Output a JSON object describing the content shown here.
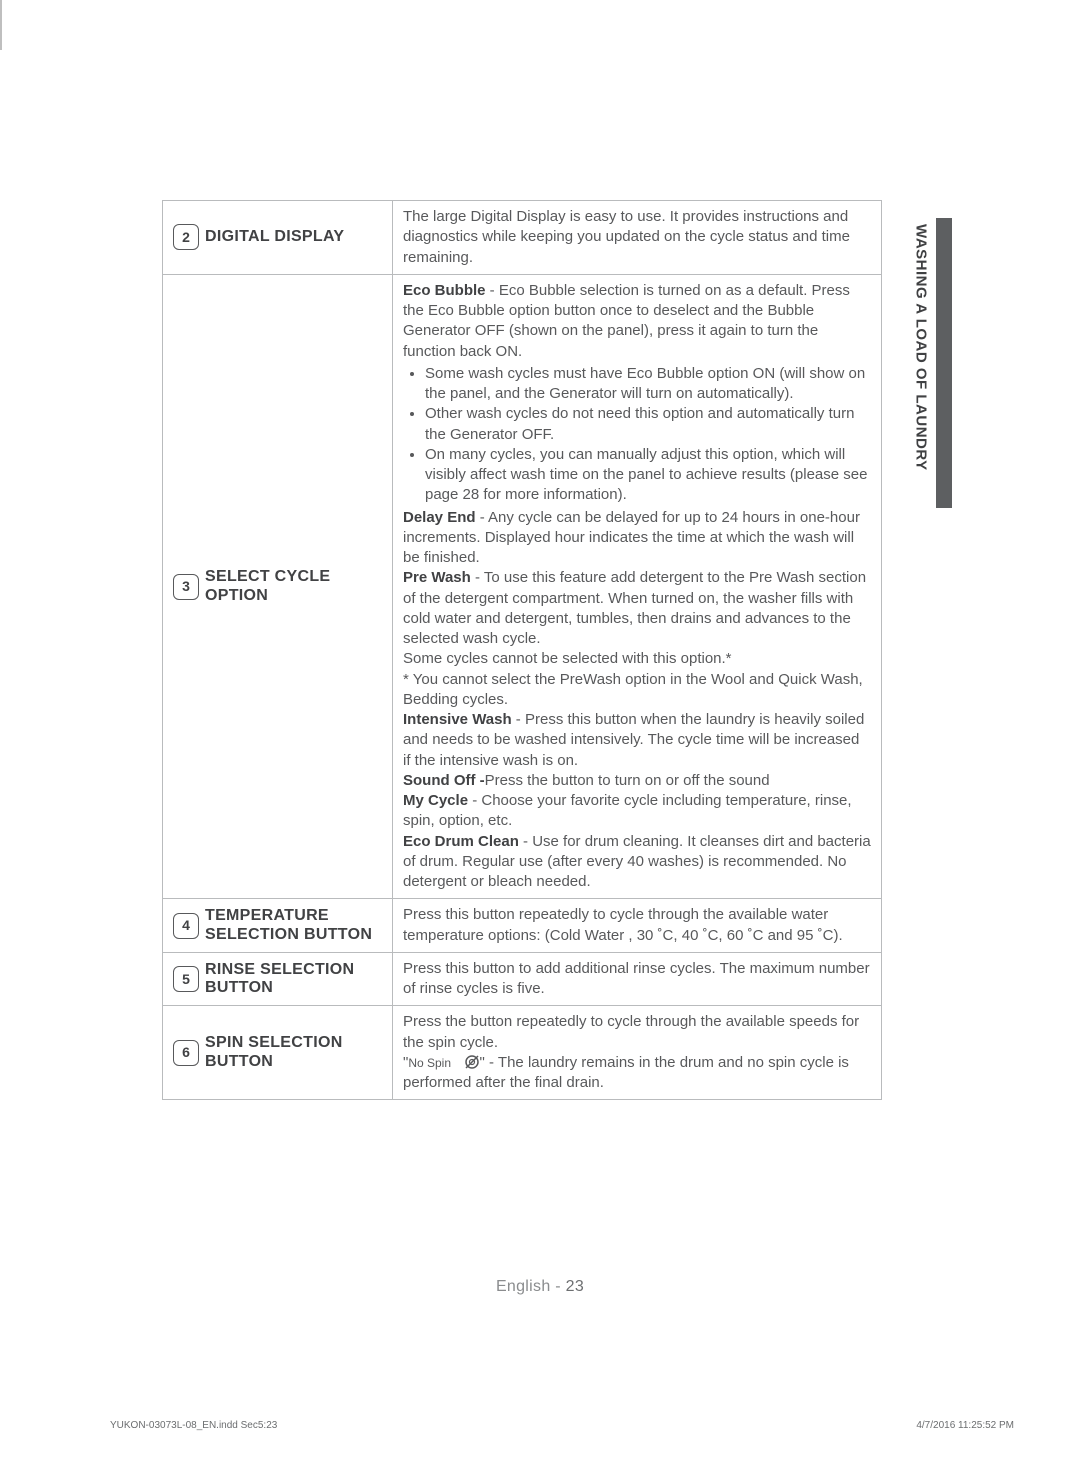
{
  "side_tab": "WASHING A LOAD OF LAUNDRY",
  "footer": {
    "lang": "English - ",
    "page": "23",
    "doc_id": "YUKON-03073L-08_EN.indd   Sec5:23",
    "timestamp": "4/7/2016   11:25:52 PM"
  },
  "rows": [
    {
      "num": "2",
      "label": "DIGITAL DISPLAY",
      "desc_html": "The large Digital Display is easy to use. It provides instructions and diagnostics while keeping you updated on the cycle status and time remaining."
    },
    {
      "num": "3",
      "label": "SELECT CYCLE OPTION",
      "desc_html": "<span class=\"term\">Eco Bubble</span> - Eco Bubble selection is turned on as a default. Press the Eco Bubble option button once to deselect and the Bubble Generator OFF (shown on the panel), press it again to turn the function back ON.<ul><li>Some wash cycles must have Eco Bubble option ON (will show on the panel, and the Generator will turn on automatically).</li><li>Other wash cycles do not need this option and automatically turn the Generator OFF.</li><li>On many cycles, you can manually adjust this option, which will visibly affect wash time on the panel to achieve results (please see page 28 for more information).</li></ul><span class=\"term\">Delay End</span> - Any cycle can be delayed for up to 24 hours in one-hour increments. Displayed hour indicates the time at which the wash will be finished.<br><span class=\"term\">Pre Wash</span> - To use this feature add detergent to the Pre Wash section of the detergent compartment. When turned on, the washer fills with cold water and detergent, tumbles, then drains and advances to the selected wash cycle.<br>Some cycles cannot be selected with this option.*<br>* You cannot select the PreWash option in the Wool and Quick Wash, Bedding cycles.<br><span class=\"term\">Intensive Wash</span> - Press this button when the laundry is heavily soiled and needs to be washed intensively. The cycle time will be increased if the intensive wash is on.<br><span class=\"term\">Sound Off -</span>Press the button to turn on or  off the sound<br><span class=\"term\">My Cycle</span> - Choose your favorite cycle including temperature, rinse, spin, option, etc.<br><span class=\"term\">Eco Drum Clean</span> - Use for drum cleaning. It cleanses dirt and bacteria of drum. Regular use (after every 40 washes) is recommended. No detergent or bleach needed."
    },
    {
      "num": "4",
      "label": "TEMPERATURE SELECTION BUTTON",
      "desc_html": "Press this button repeatedly to cycle through the available water temperature options: (Cold Water , 30 ˚C, 40 ˚C, 60 ˚C and 95 ˚C)."
    },
    {
      "num": "5",
      "label": "RINSE SELECTION BUTTON",
      "desc_html": "Press this button to add additional rinse cycles. The maximum number of rinse cycles is five."
    },
    {
      "num": "6",
      "label": "SPIN SELECTION BUTTON",
      "desc_html": "Press the button repeatedly to cycle through the available speeds for the spin cycle.<br>\"<span style=\"font-size:12px\">No Spin</span>&nbsp;&nbsp;&nbsp;<svg class=\"no-spin-icon\" viewBox=\"0 0 16 16\"><circle cx=\"8\" cy=\"8\" r=\"6\" fill=\"none\" stroke=\"#58595b\" stroke-width=\"1.5\"/><circle cx=\"8\" cy=\"8\" r=\"2.5\" fill=\"none\" stroke=\"#58595b\" stroke-width=\"1.2\"/><line x1=\"2\" y1=\"14\" x2=\"14\" y2=\"2\" stroke=\"#58595b\" stroke-width=\"1.5\"/></svg>\" - The laundry remains in the drum and no spin cycle is performed after the final drain."
    }
  ]
}
